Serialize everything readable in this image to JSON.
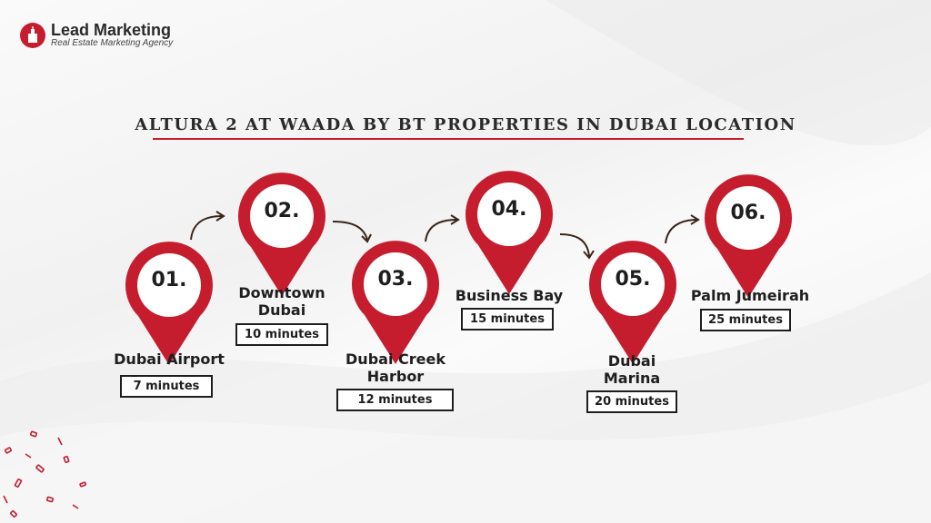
{
  "brand": {
    "name": "Lead Marketing",
    "tagline": "Real Estate Marketing Agency",
    "accent_color": "#c51d2e"
  },
  "title": "ALTURA 2 AT WAADA BY BT PROPERTIES IN DUBAI LOCATION",
  "stops": [
    {
      "num": "01.",
      "place": "Dubai Airport",
      "time": "7 minutes"
    },
    {
      "num": "02.",
      "place": "Downtown\nDubai",
      "time": "10 minutes"
    },
    {
      "num": "03.",
      "place": "Dubai Creek\nHarbor",
      "time": "12 minutes"
    },
    {
      "num": "04.",
      "place": "Business Bay",
      "time": "15 minutes"
    },
    {
      "num": "05.",
      "place": "Dubai\nMarina",
      "time": "20 minutes"
    },
    {
      "num": "06.",
      "place": "Palm Jumeirah",
      "time": "25 minutes"
    }
  ]
}
